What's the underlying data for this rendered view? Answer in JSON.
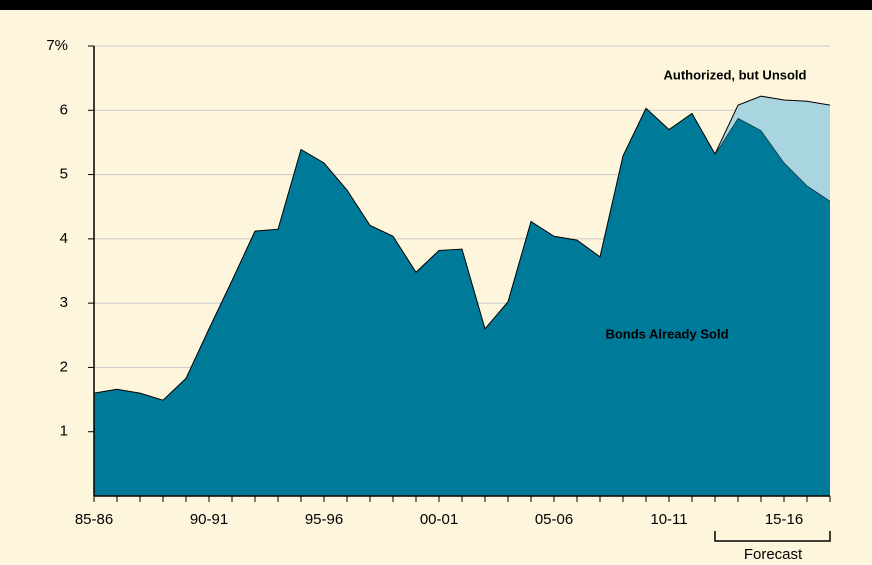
{
  "chart_data": {
    "type": "stacked_area",
    "categories": [
      "85-86",
      null,
      null,
      null,
      null,
      "90-91",
      null,
      null,
      null,
      null,
      "95-96",
      null,
      null,
      null,
      null,
      "00-01",
      null,
      null,
      null,
      null,
      "05-06",
      null,
      null,
      null,
      null,
      "10-11",
      null,
      null,
      null,
      null,
      "15-16",
      null,
      null
    ],
    "series": [
      {
        "name": "Bonds Already Sold",
        "color": "#007a99",
        "values": [
          1.6,
          1.66,
          1.6,
          1.49,
          1.83,
          2.6,
          3.35,
          4.12,
          4.15,
          5.39,
          5.18,
          4.76,
          4.21,
          4.04,
          3.48,
          3.82,
          3.84,
          2.6,
          3.02,
          4.27,
          4.04,
          3.98,
          3.72,
          5.29,
          6.03,
          5.7,
          5.95,
          5.32,
          5.88,
          5.69,
          5.19,
          4.83,
          4.59
        ]
      },
      {
        "name": "Authorized, but Unsold",
        "color": "#a9d5e0",
        "values": [
          null,
          null,
          null,
          null,
          null,
          null,
          null,
          null,
          null,
          null,
          null,
          null,
          null,
          null,
          null,
          null,
          null,
          null,
          null,
          null,
          null,
          null,
          null,
          null,
          null,
          null,
          null,
          0,
          0.2,
          0.53,
          0.97,
          1.31,
          1.49
        ]
      }
    ],
    "ylim": [
      0,
      7
    ],
    "yticks": [
      1,
      2,
      3,
      4,
      5,
      6,
      {
        "value": 7,
        "label": "7%"
      }
    ],
    "grid": true,
    "forecast_label": "Forecast"
  }
}
